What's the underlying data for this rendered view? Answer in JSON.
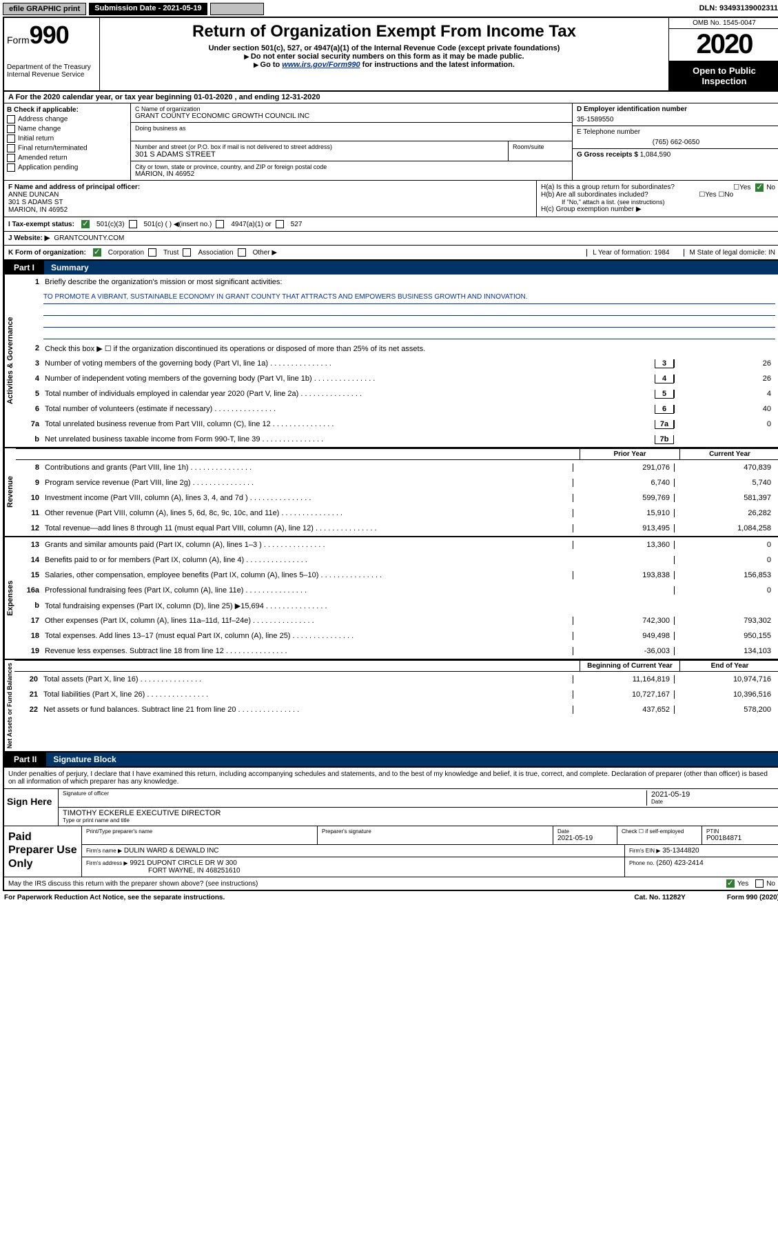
{
  "topbar": {
    "efile": "efile GRAPHIC print",
    "sub_label": "Submission Date - 2021-05-19",
    "dln": "DLN: 93493139002311"
  },
  "header": {
    "form_prefix": "Form",
    "form_num": "990",
    "dept": "Department of the Treasury",
    "irs": "Internal Revenue Service",
    "title": "Return of Organization Exempt From Income Tax",
    "sub1": "Under section 501(c), 527, or 4947(a)(1) of the Internal Revenue Code (except private foundations)",
    "sub2": "Do not enter social security numbers on this form as it may be made public.",
    "sub3_pre": "Go to ",
    "sub3_link": "www.irs.gov/Form990",
    "sub3_post": " for instructions and the latest information.",
    "omb": "OMB No. 1545-0047",
    "year": "2020",
    "open": "Open to Public Inspection"
  },
  "row_a": "A For the 2020 calendar year, or tax year beginning 01-01-2020    , and ending 12-31-2020",
  "b": {
    "label": "B Check if applicable:",
    "items": [
      "Address change",
      "Name change",
      "Initial return",
      "Final return/terminated",
      "Amended return",
      "Application pending"
    ]
  },
  "c": {
    "name_label": "C Name of organization",
    "name": "GRANT COUNTY ECONOMIC GROWTH COUNCIL INC",
    "dba_label": "Doing business as",
    "addr_label": "Number and street (or P.O. box if mail is not delivered to street address)",
    "room_label": "Room/suite",
    "addr": "301 S ADAMS STREET",
    "city_label": "City or town, state or province, country, and ZIP or foreign postal code",
    "city": "MARION, IN  46952"
  },
  "d": {
    "label": "D Employer identification number",
    "value": "35-1589550"
  },
  "e": {
    "label": "E Telephone number",
    "value": "(765) 662-0650"
  },
  "g": {
    "label": "G Gross receipts $",
    "value": "1,084,590"
  },
  "f": {
    "label": "F  Name and address of principal officer:",
    "name": "ANNE DUNCAN",
    "addr1": "301 S ADAMS ST",
    "addr2": "MARION, IN  46952"
  },
  "h": {
    "a": "H(a)  Is this a group return for subordinates?",
    "a_ans": "No",
    "b": "H(b)  Are all subordinates included?",
    "b_note": "If \"No,\" attach a list. (see instructions)",
    "c": "H(c)  Group exemption number ▶"
  },
  "i": {
    "label": "I  Tax-exempt status:",
    "opt1": "501(c)(3)",
    "opt2": "501(c) (  ) ◀(insert no.)",
    "opt3": "4947(a)(1) or",
    "opt4": "527"
  },
  "j": {
    "label": "J  Website: ▶",
    "value": "GRANTCOUNTY.COM"
  },
  "k": {
    "label": "K Form of organization:",
    "opts": [
      "Corporation",
      "Trust",
      "Association",
      "Other ▶"
    ],
    "l": "L Year of formation: 1984",
    "m": "M State of legal domicile: IN"
  },
  "part1": {
    "tab": "Part I",
    "title": "Summary",
    "vert_ag": "Activities & Governance",
    "vert_rev": "Revenue",
    "vert_exp": "Expenses",
    "vert_na": "Net Assets or Fund Balances",
    "l1": "Briefly describe the organization's mission or most significant activities:",
    "mission": "TO PROMOTE A VIBRANT, SUSTAINABLE ECONOMY IN GRANT COUNTY THAT ATTRACTS AND EMPOWERS BUSINESS GROWTH AND INNOVATION.",
    "l2": "Check this box ▶ ☐  if the organization discontinued its operations or disposed of more than 25% of its net assets.",
    "lines_single": [
      {
        "n": "3",
        "d": "Number of voting members of the governing body (Part VI, line 1a)",
        "box": "3",
        "v": "26"
      },
      {
        "n": "4",
        "d": "Number of independent voting members of the governing body (Part VI, line 1b)",
        "box": "4",
        "v": "26"
      },
      {
        "n": "5",
        "d": "Total number of individuals employed in calendar year 2020 (Part V, line 2a)",
        "box": "5",
        "v": "4"
      },
      {
        "n": "6",
        "d": "Total number of volunteers (estimate if necessary)",
        "box": "6",
        "v": "40"
      },
      {
        "n": "7a",
        "d": "Total unrelated business revenue from Part VIII, column (C), line 12",
        "box": "7a",
        "v": "0"
      },
      {
        "n": "b",
        "d": "Net unrelated business taxable income from Form 990-T, line 39",
        "box": "7b",
        "v": ""
      }
    ],
    "col_hdr1": "Prior Year",
    "col_hdr2": "Current Year",
    "rev_lines": [
      {
        "n": "8",
        "d": "Contributions and grants (Part VIII, line 1h)",
        "p": "291,076",
        "c": "470,839"
      },
      {
        "n": "9",
        "d": "Program service revenue (Part VIII, line 2g)",
        "p": "6,740",
        "c": "5,740"
      },
      {
        "n": "10",
        "d": "Investment income (Part VIII, column (A), lines 3, 4, and 7d )",
        "p": "599,769",
        "c": "581,397"
      },
      {
        "n": "11",
        "d": "Other revenue (Part VIII, column (A), lines 5, 6d, 8c, 9c, 10c, and 11e)",
        "p": "15,910",
        "c": "26,282"
      },
      {
        "n": "12",
        "d": "Total revenue—add lines 8 through 11 (must equal Part VIII, column (A), line 12)",
        "p": "913,495",
        "c": "1,084,258"
      }
    ],
    "exp_lines": [
      {
        "n": "13",
        "d": "Grants and similar amounts paid (Part IX, column (A), lines 1–3 )",
        "p": "13,360",
        "c": "0"
      },
      {
        "n": "14",
        "d": "Benefits paid to or for members (Part IX, column (A), line 4)",
        "p": "",
        "c": "0"
      },
      {
        "n": "15",
        "d": "Salaries, other compensation, employee benefits (Part IX, column (A), lines 5–10)",
        "p": "193,838",
        "c": "156,853"
      },
      {
        "n": "16a",
        "d": "Professional fundraising fees (Part IX, column (A), line 11e)",
        "p": "",
        "c": "0"
      },
      {
        "n": "b",
        "d": "Total fundraising expenses (Part IX, column (D), line 25) ▶15,694",
        "p": "grey",
        "c": "grey"
      },
      {
        "n": "17",
        "d": "Other expenses (Part IX, column (A), lines 11a–11d, 11f–24e)",
        "p": "742,300",
        "c": "793,302"
      },
      {
        "n": "18",
        "d": "Total expenses. Add lines 13–17 (must equal Part IX, column (A), line 25)",
        "p": "949,498",
        "c": "950,155"
      },
      {
        "n": "19",
        "d": "Revenue less expenses. Subtract line 18 from line 12",
        "p": "-36,003",
        "c": "134,103"
      }
    ],
    "na_hdr1": "Beginning of Current Year",
    "na_hdr2": "End of Year",
    "na_lines": [
      {
        "n": "20",
        "d": "Total assets (Part X, line 16)",
        "p": "11,164,819",
        "c": "10,974,716"
      },
      {
        "n": "21",
        "d": "Total liabilities (Part X, line 26)",
        "p": "10,727,167",
        "c": "10,396,516"
      },
      {
        "n": "22",
        "d": "Net assets or fund balances. Subtract line 21 from line 20",
        "p": "437,652",
        "c": "578,200"
      }
    ]
  },
  "part2": {
    "tab": "Part II",
    "title": "Signature Block",
    "decl": "Under penalties of perjury, I declare that I have examined this return, including accompanying schedules and statements, and to the best of my knowledge and belief, it is true, correct, and complete. Declaration of preparer (other than officer) is based on all information of which preparer has any knowledge.",
    "sign_here": "Sign Here",
    "sig_officer": "Signature of officer",
    "sig_date": "2021-05-19",
    "date_label": "Date",
    "officer_name": "TIMOTHY ECKERLE  EXECUTIVE DIRECTOR",
    "officer_sub": "Type or print name and title",
    "paid": "Paid Preparer Use Only",
    "p_name_label": "Print/Type preparer's name",
    "p_sig_label": "Preparer's signature",
    "p_date_label": "Date",
    "p_date": "2021-05-19",
    "p_check": "Check ☐ if self-employed",
    "ptin_label": "PTIN",
    "ptin": "P00184871",
    "firm_name_label": "Firm's name      ▶",
    "firm_name": "DULIN WARD & DEWALD INC",
    "firm_ein_label": "Firm's EIN ▶",
    "firm_ein": "35-1344820",
    "firm_addr_label": "Firm's address ▶",
    "firm_addr1": "9921 DUPONT CIRCLE DR W 300",
    "firm_addr2": "FORT WAYNE, IN  468251610",
    "phone_label": "Phone no.",
    "phone": "(260) 423-2414",
    "discuss": "May the IRS discuss this return with the preparer shown above? (see instructions)",
    "discuss_ans": "Yes"
  },
  "footer": {
    "pra": "For Paperwork Reduction Act Notice, see the separate instructions.",
    "cat": "Cat. No. 11282Y",
    "form": "Form 990 (2020)"
  }
}
